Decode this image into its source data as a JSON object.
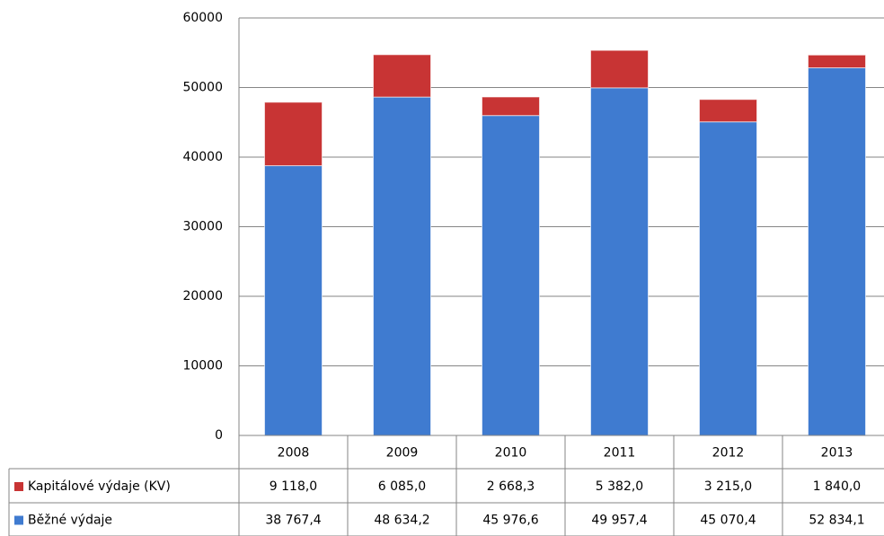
{
  "chart_data": {
    "type": "stacked-bar",
    "categories": [
      "2008",
      "2009",
      "2010",
      "2011",
      "2012",
      "2013"
    ],
    "series": [
      {
        "name": "Kapitálové výdaje (KV)",
        "color": "#c83434",
        "values": [
          9118.0,
          6085.0,
          2668.3,
          5382.0,
          3215.0,
          1840.0
        ],
        "value_labels": [
          "9 118,0",
          "6 085,0",
          "2 668,3",
          "5 382,0",
          "3 215,0",
          "1 840,0"
        ]
      },
      {
        "name": "Běžné výdaje",
        "color": "#3f7bd0",
        "values": [
          38767.4,
          48634.2,
          45976.6,
          49957.4,
          45070.4,
          52834.1
        ],
        "value_labels": [
          "38 767,4",
          "48 634,2",
          "45 976,6",
          "49 957,4",
          "45 070,4",
          "52 834,1"
        ]
      }
    ],
    "ylim": [
      0,
      60000
    ],
    "yticks": [
      0,
      10000,
      20000,
      30000,
      40000,
      50000,
      60000
    ],
    "grid": true,
    "data_table": true
  }
}
